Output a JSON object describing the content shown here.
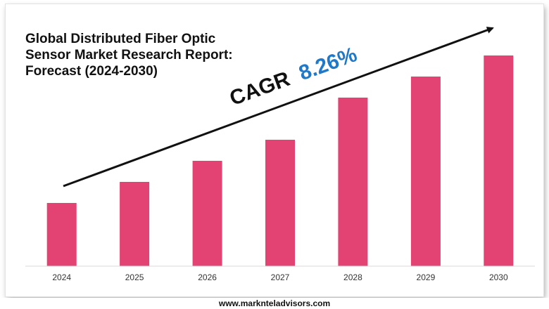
{
  "chart_data": {
    "type": "bar",
    "title": "Global Distributed Fiber Optic Sensor Market Research Report: Forecast (2024-2030)",
    "categories": [
      "2024",
      "2025",
      "2026",
      "2027",
      "2028",
      "2029",
      "2030"
    ],
    "values": [
      30,
      40,
      50,
      60,
      80,
      90,
      100
    ],
    "ylim": [
      0,
      105
    ],
    "grid": false,
    "bar_color": "#e24372",
    "annotation": {
      "label": "CAGR",
      "value": "8.26%",
      "label_color": "#111111",
      "value_color": "#1f78c8"
    }
  },
  "footer": {
    "url": "www.marknteladvisors.com"
  }
}
